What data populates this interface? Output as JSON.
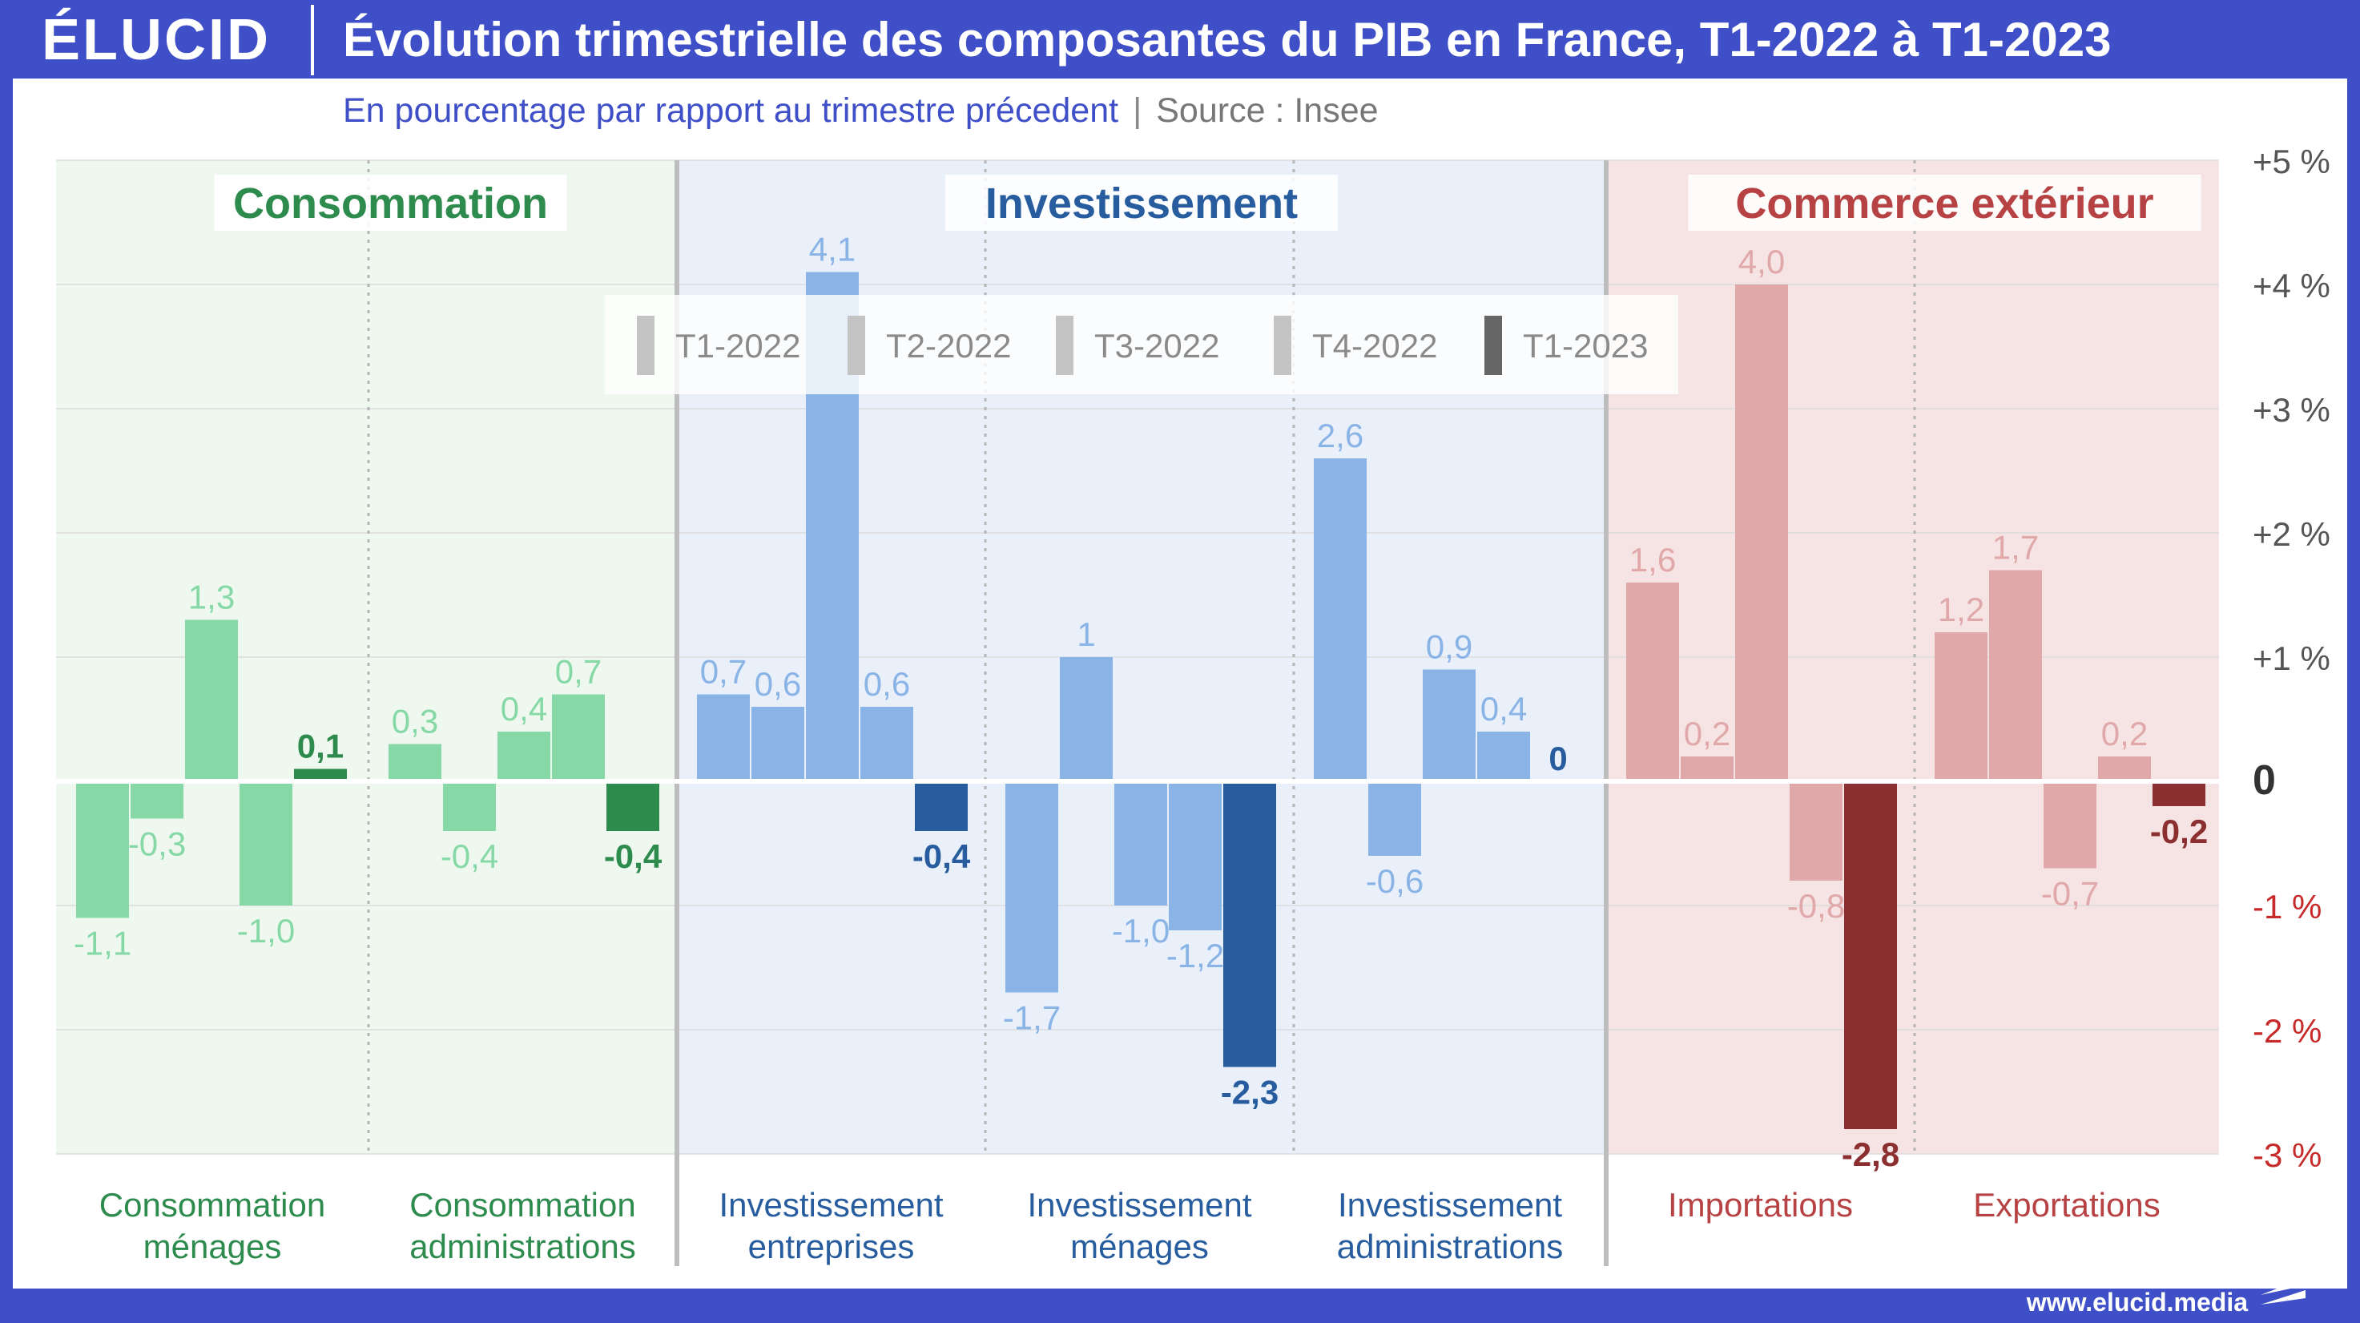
{
  "header": {
    "logo": "ÉLUCID",
    "title": "Évolution trimestrielle des composantes du PIB en France, T1-2022 à T1-2023"
  },
  "subheader": {
    "subtitle": "En pourcentage par rapport au trimestre précedent",
    "separator": "|",
    "source": "Source : Insee"
  },
  "footer": {
    "url": "www.elucid.media"
  },
  "colors": {
    "background_frame": "#3f4fc7",
    "green_light": "#86d9a6",
    "green_dark": "#2e8b4e",
    "green_text": "#2e8b4e",
    "green_bg": "#eff8ef",
    "blue_light": "#8ab3e6",
    "blue_dark": "#275d9e",
    "blue_text": "#275d9e",
    "blue_bg": "#e9f0fa",
    "red_light": "#e0a8a9",
    "red_dark": "#8b2f31",
    "red_text": "#b74244",
    "red_bg": "#f6e4e4",
    "legend_light": "#c4c4c4",
    "legend_dark": "#666666",
    "negative_tick": "#c72a2a"
  },
  "chart_data": {
    "type": "bar",
    "title": "Évolution trimestrielle des composantes du PIB en France, T1-2022 à T1-2023",
    "subtitle": "En pourcentage par rapport au trimestre précedent",
    "ylim": [
      -3,
      5
    ],
    "yticks": [
      {
        "value": 5,
        "label": "+5 %"
      },
      {
        "value": 4,
        "label": "+4 %"
      },
      {
        "value": 3,
        "label": "+3 %"
      },
      {
        "value": 2,
        "label": "+2 %"
      },
      {
        "value": 1,
        "label": "+1 %"
      },
      {
        "value": 0,
        "label": "0"
      },
      {
        "value": -1,
        "label": "-1 %"
      },
      {
        "value": -2,
        "label": "-2 %"
      },
      {
        "value": -3,
        "label": "-3 %"
      }
    ],
    "grid": true,
    "legend_position": "top-center",
    "series_names": [
      "T1-2022",
      "T2-2022",
      "T3-2022",
      "T4-2022",
      "T1-2023"
    ],
    "groups": [
      {
        "name": "Consommation",
        "theme": "green",
        "categories": [
          {
            "label": [
              "Consommation",
              "ménages"
            ],
            "values": [
              -1.1,
              -0.3,
              1.3,
              -1.0,
              0.1
            ],
            "labels": [
              "-1,1",
              "-0,3",
              "1,3",
              "-1,0",
              "0,1"
            ]
          },
          {
            "label": [
              "Consommation",
              "administrations"
            ],
            "values": [
              0.3,
              -0.4,
              0.4,
              0.7,
              -0.4
            ],
            "labels": [
              "0,3",
              "-0,4",
              "0,4",
              "0,7",
              "-0,4"
            ]
          }
        ]
      },
      {
        "name": "Investissement",
        "theme": "blue",
        "categories": [
          {
            "label": [
              "Investissement",
              "entreprises"
            ],
            "values": [
              0.7,
              0.6,
              4.1,
              0.6,
              -0.4
            ],
            "labels": [
              "0,7",
              "0,6",
              "4,1",
              "0,6",
              "-0,4"
            ]
          },
          {
            "label": [
              "Investissement",
              "ménages"
            ],
            "values": [
              -1.7,
              1.0,
              -1.0,
              -1.2,
              -2.3
            ],
            "labels": [
              "-1,7",
              "1",
              "-1,0",
              "-1,2",
              "-2,3"
            ]
          },
          {
            "label": [
              "Investissement",
              "administrations"
            ],
            "values": [
              2.6,
              -0.6,
              0.9,
              0.4,
              0.0
            ],
            "labels": [
              "2,6",
              "-0,6",
              "0,9",
              "0,4",
              "0"
            ]
          }
        ]
      },
      {
        "name": "Commerce extérieur",
        "theme": "red",
        "categories": [
          {
            "label": [
              "Importations"
            ],
            "values": [
              1.6,
              0.2,
              4.0,
              -0.8,
              -2.8
            ],
            "labels": [
              "1,6",
              "0,2",
              "4,0",
              "-0,8",
              "-2,8"
            ]
          },
          {
            "label": [
              "Exportations"
            ],
            "values": [
              1.2,
              1.7,
              -0.7,
              0.2,
              -0.2
            ],
            "labels": [
              "1,2",
              "1,7",
              "-0,7",
              "0,2",
              "-0,2"
            ]
          }
        ]
      }
    ]
  }
}
